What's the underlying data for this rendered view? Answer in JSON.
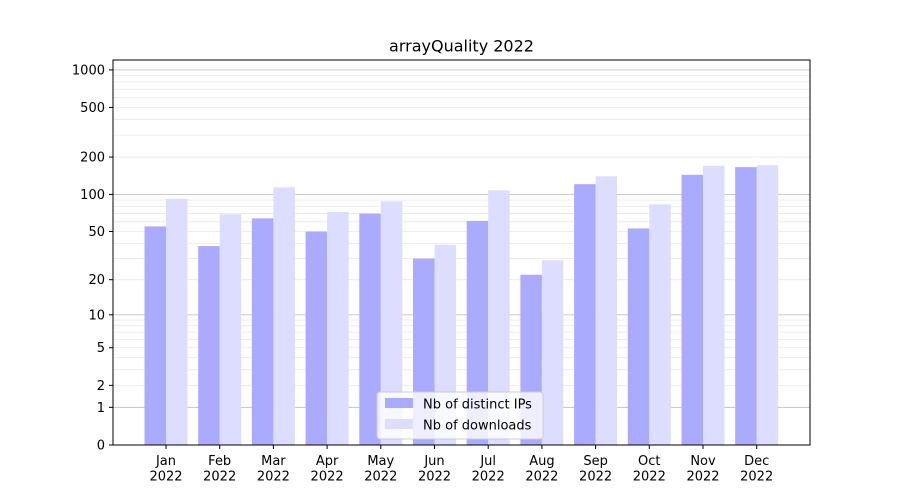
{
  "chart_data": {
    "type": "bar",
    "title": "arrayQuality 2022",
    "xlabel": "",
    "ylabel": "",
    "y_scale": "log(1+y)",
    "ylim": [
      0,
      1200
    ],
    "y_ticks": [
      0,
      1,
      2,
      5,
      10,
      20,
      50,
      100,
      200,
      500,
      1000
    ],
    "y_tick_labels": [
      "0",
      "1",
      "2",
      "5",
      "10",
      "20",
      "50",
      "100",
      "200",
      "500",
      "1000"
    ],
    "categories": [
      "Jan\n2022",
      "Feb\n2022",
      "Mar\n2022",
      "Apr\n2022",
      "May\n2022",
      "Jun\n2022",
      "Jul\n2022",
      "Aug\n2022",
      "Sep\n2022",
      "Oct\n2022",
      "Nov\n2022",
      "Dec\n2022"
    ],
    "series": [
      {
        "name": "Nb of distinct IPs",
        "color": "#aaaaff",
        "values": [
          55,
          38,
          64,
          50,
          70,
          30,
          61,
          22,
          121,
          53,
          144,
          166
        ]
      },
      {
        "name": "Nb of downloads",
        "color": "#ddddff",
        "values": [
          92,
          69,
          114,
          72,
          88,
          39,
          108,
          29,
          140,
          83,
          170,
          172
        ]
      }
    ],
    "grid": "y",
    "legend_position": "bottom-center"
  }
}
